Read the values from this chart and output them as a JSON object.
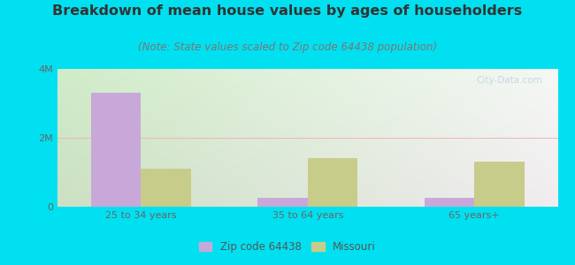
{
  "title": "Breakdown of mean house values by ages of householders",
  "subtitle": "(Note: State values scaled to Zip code 64438 population)",
  "categories": [
    "25 to 34 years",
    "35 to 64 years",
    "65 years+"
  ],
  "zip_values": [
    3300000,
    250000,
    255000
  ],
  "state_values": [
    1100000,
    1400000,
    1300000
  ],
  "zip_color": "#c8a8d8",
  "state_color": "#c8cc8a",
  "background_outer": "#00e0f0",
  "background_inner_topleft": "#d8eec8",
  "background_inner_topright": "#f0f5ee",
  "background_inner_bottom": "#f8f8f4",
  "ylim": [
    0,
    4000000
  ],
  "yticks": [
    0,
    2000000,
    4000000
  ],
  "ytick_labels": [
    "0",
    "2M",
    "4M"
  ],
  "legend_zip_label": "Zip code 64438",
  "legend_state_label": "Missouri",
  "bar_width": 0.3,
  "title_fontsize": 11.5,
  "subtitle_fontsize": 8.5,
  "gridline_color": "#e8b8b8",
  "gridline_alpha": 0.9
}
